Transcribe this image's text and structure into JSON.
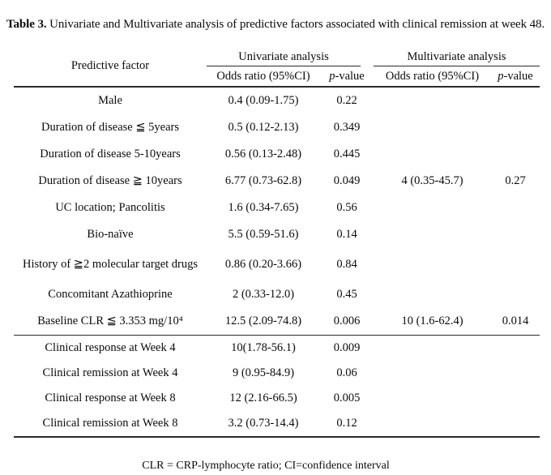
{
  "caption": {
    "label": "Table 3.",
    "text": " Univariate and Multivariate analysis of predictive factors associated with clinical remission at week 48."
  },
  "table": {
    "factor_header": "Predictive factor",
    "groups": [
      {
        "label": "Univariate analysis"
      },
      {
        "label": "Multivariate analysis"
      }
    ],
    "subheaders": {
      "odds_ratio": "Odds ratio (95%CI)",
      "p_italic": "p",
      "p_rest": "-value"
    },
    "rows": [
      {
        "factor": "Male",
        "uni_or": "0.4 (0.09-1.75)",
        "uni_p": "0.22",
        "multi_or": "",
        "multi_p": ""
      },
      {
        "factor": "Duration of disease ≦ 5years",
        "uni_or": "0.5 (0.12-2.13)",
        "uni_p": "0.349",
        "multi_or": "",
        "multi_p": ""
      },
      {
        "factor": "Duration of disease 5-10years",
        "uni_or": "0.56 (0.13-2.48)",
        "uni_p": "0.445",
        "multi_or": "",
        "multi_p": ""
      },
      {
        "factor": "Duration of disease ≧ 10years",
        "uni_or": "6.77 (0.73-62.8)",
        "uni_p": "0.049",
        "multi_or": "4 (0.35-45.7)",
        "multi_p": "0.27"
      },
      {
        "factor": "UC location; Pancolitis",
        "uni_or": "1.6 (0.34-7.65)",
        "uni_p": "0.56",
        "multi_or": "",
        "multi_p": ""
      },
      {
        "factor": "Bio-naïve",
        "uni_or": "5.5 (0.59-51.6)",
        "uni_p": "0.14",
        "multi_or": "",
        "multi_p": ""
      },
      {
        "factor": "History of ≧2 molecular target drugs",
        "uni_or": "0.86 (0.20-3.66)",
        "uni_p": "0.84",
        "multi_or": "",
        "multi_p": ""
      },
      {
        "factor": "Concomitant Azathioprine",
        "uni_or": "2 (0.33-12.0)",
        "uni_p": "0.45",
        "multi_or": "",
        "multi_p": ""
      },
      {
        "factor": "Baseline CLR ≦ 3.353 mg/10⁴",
        "uni_or": "12.5 (2.09-74.8)",
        "uni_p": "0.006",
        "multi_or": "10 (1.6-62.4)",
        "multi_p": "0.014"
      }
    ],
    "rows2": [
      {
        "factor": "Clinical response  at Week 4",
        "uni_or": "10(1.78-56.1)",
        "uni_p": "0.009",
        "multi_or": "",
        "multi_p": ""
      },
      {
        "factor": "Clinical remission  at Week 4",
        "uni_or": "9 (0.95-84.9)",
        "uni_p": "0.06",
        "multi_or": "",
        "multi_p": ""
      },
      {
        "factor": "Clinical response  at Week 8",
        "uni_or": "12 (2.16-66.5)",
        "uni_p": "0.005",
        "multi_or": "",
        "multi_p": ""
      },
      {
        "factor": "Clinical remission  at Week 8",
        "uni_or": "3.2 (0.73-14.4)",
        "uni_p": "0.12",
        "multi_or": "",
        "multi_p": ""
      }
    ]
  },
  "footnote": "CLR = CRP-lymphocyte ratio; CI=confidence interval"
}
